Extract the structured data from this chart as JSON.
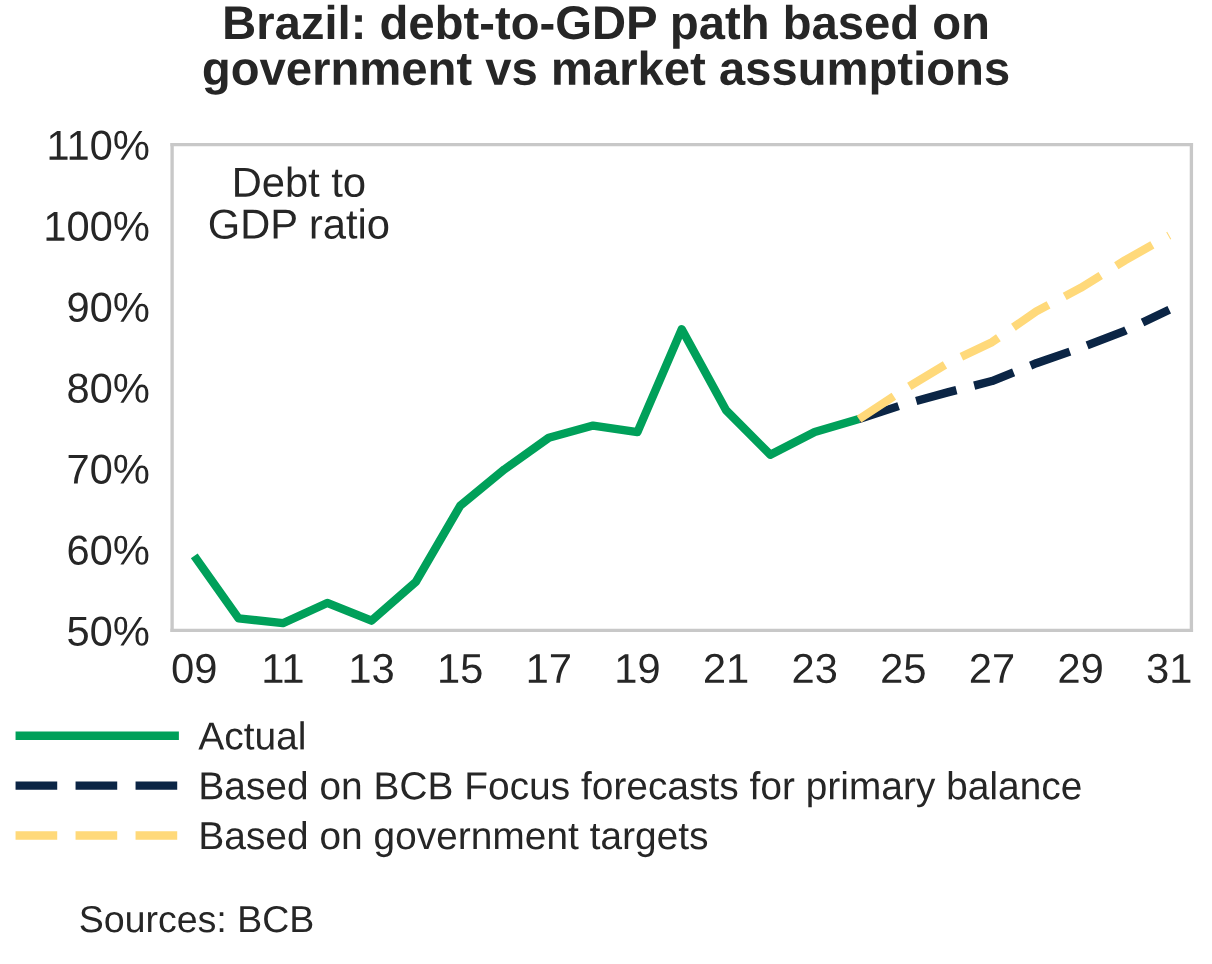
{
  "chart_data": {
    "type": "line",
    "title": "Brazil: debt-to-GDP path based on\ngovernment vs market assumptions",
    "categories": [
      "09",
      null,
      "11",
      null,
      "13",
      null,
      "15",
      null,
      "17",
      null,
      "19",
      null,
      "21",
      null,
      "23",
      null,
      "25",
      null,
      "27",
      null,
      "29",
      null,
      "31"
    ],
    "series": [
      {
        "name": "Actual",
        "color": "#00a05a",
        "line_style": "solid",
        "values": [
          59.2,
          51.5,
          50.9,
          53.4,
          51.2,
          56.0,
          65.4,
          69.9,
          73.8,
          75.3,
          74.5,
          87.2,
          77.2,
          71.7,
          74.5,
          76.1,
          null,
          null,
          null,
          null,
          null,
          null,
          null
        ]
      },
      {
        "name": "Based on BCB Focus forecasts for primary balance",
        "color": "#0b2545",
        "line_style": "dashed",
        "values": [
          null,
          null,
          null,
          null,
          null,
          null,
          null,
          null,
          null,
          null,
          null,
          null,
          null,
          null,
          null,
          76.1,
          77.9,
          79.4,
          80.8,
          83.0,
          84.9,
          87.0,
          89.6
        ]
      },
      {
        "name": "Based on government targets",
        "color": "#ffd97a",
        "line_style": "dashed",
        "values": [
          null,
          null,
          null,
          null,
          null,
          null,
          null,
          null,
          null,
          null,
          null,
          null,
          null,
          null,
          null,
          76.1,
          79.7,
          83.0,
          85.6,
          89.4,
          92.3,
          95.7,
          98.8
        ]
      }
    ],
    "ylim": [
      50,
      110
    ],
    "yticks": [
      {
        "value": 50,
        "label": "50%"
      },
      {
        "value": 60,
        "label": "60%"
      },
      {
        "value": 70,
        "label": "70%"
      },
      {
        "value": 80,
        "label": "80%"
      },
      {
        "value": 90,
        "label": "90%"
      },
      {
        "value": 100,
        "label": "100%"
      },
      {
        "value": 110,
        "label": "110%"
      }
    ],
    "grid": false,
    "legend": "bottom",
    "marker": "none",
    "annotations": [
      "Debt to\nGDP ratio",
      "Sources: BCB"
    ]
  }
}
